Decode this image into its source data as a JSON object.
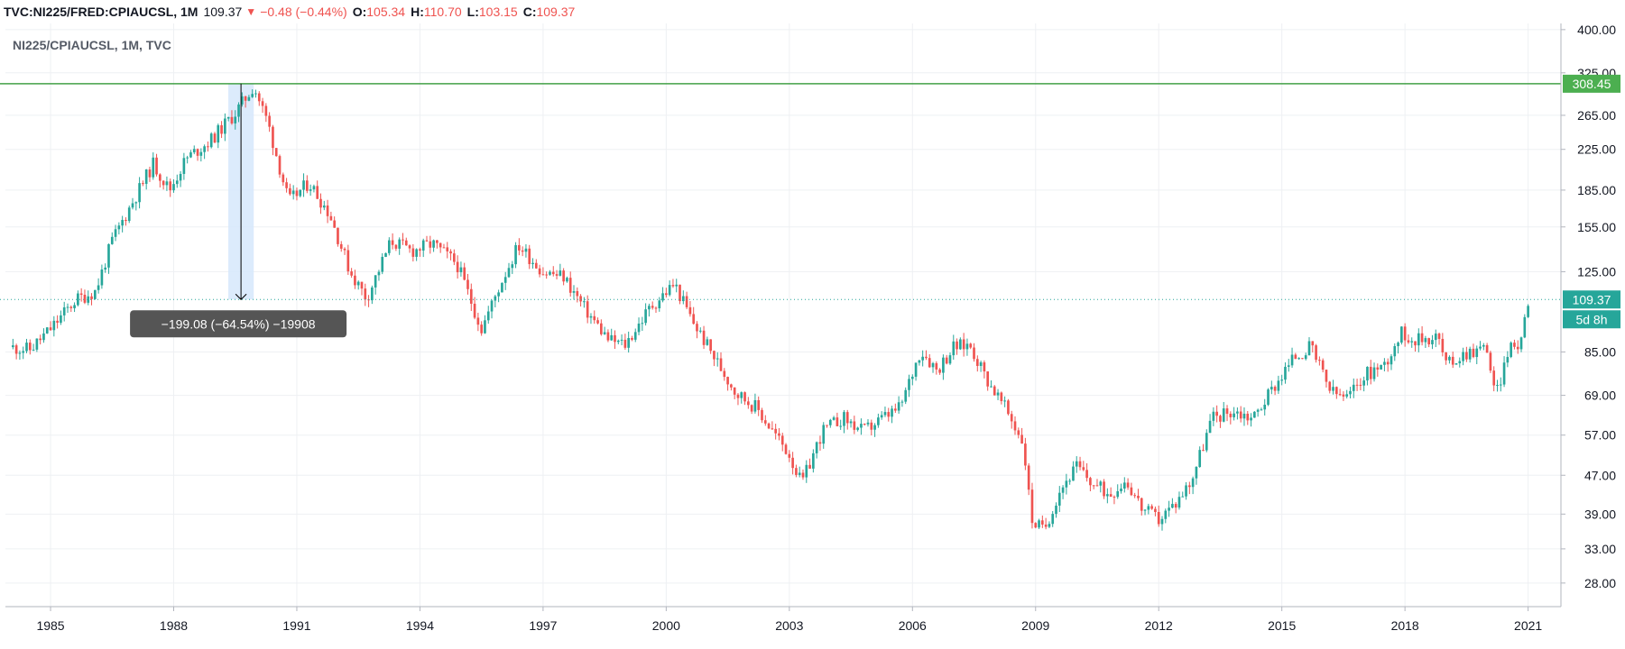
{
  "header": {
    "symbol": "TVC:NI225/FRED:CPIAUCSL, 1M",
    "last": "109.37",
    "change": "−0.48 (−0.44%)",
    "o_label": "O:",
    "o": "105.34",
    "h_label": "H:",
    "h": "110.70",
    "l_label": "L:",
    "l": "103.15",
    "c_label": "C:",
    "c": "109.37"
  },
  "colors": {
    "up": "#26a69a",
    "down": "#ef5350",
    "hline": "#43a047",
    "measure": "#d6e8fb",
    "badge": "#4caf50"
  },
  "chart_data": {
    "type": "candlestick",
    "title": "NI225/CPIAUCSL, 1M, TVC",
    "xlabel": "",
    "ylabel": "",
    "x_ticks": [
      "1985",
      "1988",
      "1991",
      "1994",
      "1997",
      "2000",
      "2003",
      "2006",
      "2009",
      "2012",
      "2015",
      "2018",
      "2021"
    ],
    "y_ticks": [
      "400.00",
      "325.00",
      "265.00",
      "225.00",
      "185.00",
      "155.00",
      "125.00",
      "85.00",
      "69.00",
      "57.00",
      "47.00",
      "39.00",
      "33.00",
      "28.00"
    ],
    "y_scale": "log",
    "ylim": [
      25,
      405
    ],
    "xlim": [
      1983.9,
      2021.8
    ],
    "grid": true,
    "anchors": [
      [
        1984.0,
        87
      ],
      [
        1984.5,
        86
      ],
      [
        1985.0,
        95
      ],
      [
        1985.6,
        109
      ],
      [
        1986.1,
        114
      ],
      [
        1986.5,
        145
      ],
      [
        1987.0,
        175
      ],
      [
        1987.5,
        210
      ],
      [
        1987.9,
        185
      ],
      [
        1988.3,
        215
      ],
      [
        1988.9,
        235
      ],
      [
        1989.5,
        268
      ],
      [
        1989.95,
        305
      ],
      [
        1990.3,
        255
      ],
      [
        1990.8,
        175
      ],
      [
        1991.3,
        192
      ],
      [
        1991.8,
        165
      ],
      [
        1992.3,
        125
      ],
      [
        1992.7,
        110
      ],
      [
        1993.3,
        145
      ],
      [
        1993.8,
        138
      ],
      [
        1994.3,
        143
      ],
      [
        1994.9,
        130
      ],
      [
        1995.5,
        95
      ],
      [
        1996.0,
        120
      ],
      [
        1996.4,
        142
      ],
      [
        1997.0,
        125
      ],
      [
        1997.5,
        122
      ],
      [
        1998.0,
        105
      ],
      [
        1998.6,
        90
      ],
      [
        1999.0,
        88
      ],
      [
        1999.6,
        105
      ],
      [
        2000.2,
        118
      ],
      [
        2000.6,
        100
      ],
      [
        2001.2,
        82
      ],
      [
        2001.7,
        70
      ],
      [
        2002.2,
        65
      ],
      [
        2002.6,
        58
      ],
      [
        2003.0,
        52
      ],
      [
        2003.3,
        45
      ],
      [
        2003.8,
        58
      ],
      [
        2004.3,
        62
      ],
      [
        2004.8,
        58
      ],
      [
        2005.3,
        62
      ],
      [
        2005.7,
        65
      ],
      [
        2006.2,
        86
      ],
      [
        2006.6,
        78
      ],
      [
        2007.0,
        87
      ],
      [
        2007.4,
        88
      ],
      [
        2007.8,
        75
      ],
      [
        2008.3,
        64
      ],
      [
        2008.7,
        55
      ],
      [
        2008.9,
        38
      ],
      [
        2009.2,
        36
      ],
      [
        2009.6,
        44
      ],
      [
        2010.0,
        49
      ],
      [
        2010.4,
        45
      ],
      [
        2010.8,
        43
      ],
      [
        2011.2,
        46
      ],
      [
        2011.6,
        40
      ],
      [
        2012.0,
        38
      ],
      [
        2012.4,
        41
      ],
      [
        2012.8,
        46
      ],
      [
        2013.3,
        62
      ],
      [
        2013.8,
        64
      ],
      [
        2014.3,
        62
      ],
      [
        2014.8,
        72
      ],
      [
        2015.3,
        83
      ],
      [
        2015.7,
        87
      ],
      [
        2016.2,
        70
      ],
      [
        2016.6,
        68
      ],
      [
        2017.0,
        76
      ],
      [
        2017.5,
        80
      ],
      [
        2017.9,
        93
      ],
      [
        2018.3,
        90
      ],
      [
        2018.8,
        92
      ],
      [
        2019.0,
        80
      ],
      [
        2019.5,
        85
      ],
      [
        2020.0,
        87
      ],
      [
        2020.2,
        68
      ],
      [
        2020.5,
        85
      ],
      [
        2020.8,
        89
      ],
      [
        2021.0,
        109
      ]
    ],
    "last_value": "109.37",
    "last_timer": "5d 8h",
    "horizontal_line": {
      "value": "308.45"
    },
    "measure": {
      "from_x": 1989.33,
      "to_x": 1989.95,
      "from_y": 308.45,
      "to_y": 109.37,
      "label": "−199.08 (−64.54%) −19908"
    }
  }
}
